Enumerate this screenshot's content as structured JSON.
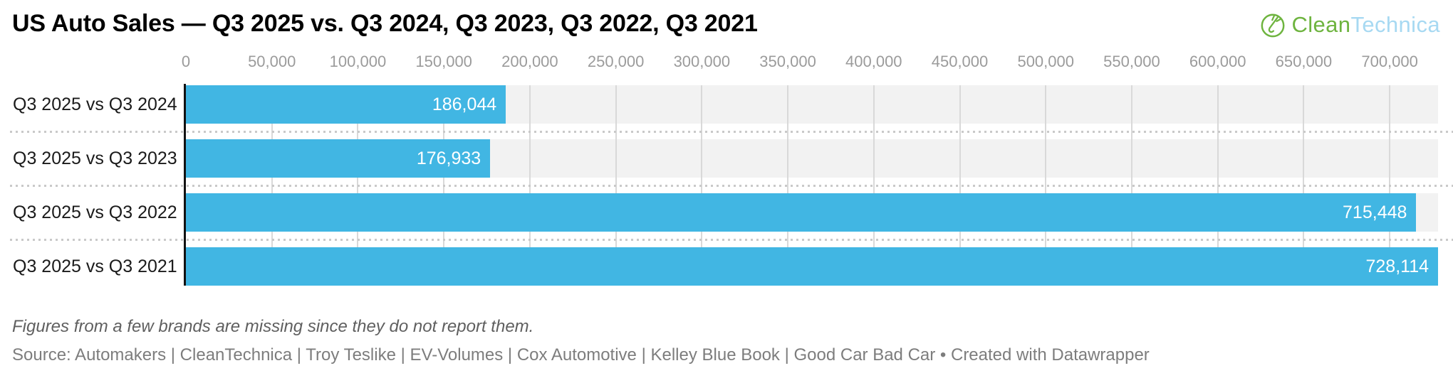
{
  "header": {
    "title": "US Auto Sales — Q3 2025 vs. Q3 2024, Q3 2023, Q3 2022, Q3 2021",
    "logo": {
      "clean": "Clean",
      "technica": "Technica",
      "icon": "cleantechnica-plug-sprout-icon",
      "green": "#6eb43f",
      "light_blue": "#a7d9f2"
    }
  },
  "chart_data": {
    "type": "bar",
    "orientation": "horizontal",
    "title": "US Auto Sales — Q3 2025 vs. Q3 2024, Q3 2023, Q3 2022, Q3 2021",
    "categories": [
      "Q3 2025 vs Q3 2024",
      "Q3 2025 vs Q3 2023",
      "Q3 2025 vs Q3 2022",
      "Q3 2025 vs Q3 2021"
    ],
    "values": [
      186044,
      176933,
      715448,
      728114
    ],
    "value_labels": [
      "186,044",
      "176,933",
      "715,448",
      "728,114"
    ],
    "axis": {
      "min": 0,
      "max": 728114,
      "tick_step": 50000,
      "tick_values": [
        0,
        50000,
        100000,
        150000,
        200000,
        250000,
        300000,
        350000,
        400000,
        450000,
        500000,
        550000,
        600000,
        650000,
        700000
      ],
      "tick_labels": [
        "0",
        "50,000",
        "100,000",
        "150,000",
        "200,000",
        "250,000",
        "300,000",
        "350,000",
        "400,000",
        "450,000",
        "500,000",
        "550,000",
        "600,000",
        "650,000",
        "700,000"
      ]
    },
    "grid": true,
    "legend": false,
    "colors": {
      "bar": "#41b6e3",
      "track": "#f2f2f2",
      "gridline": "#d9d9d9",
      "separator_dots": "#c9c9c9",
      "axis_line": "#121212",
      "tick_text": "#9b9b9b",
      "value_text": "#ffffff"
    }
  },
  "notes": {
    "footnote": "Figures from a few brands are missing since they do not report them.",
    "source": "Source: Automakers | CleanTechnica | Troy Teslike | EV-Volumes | Cox Automotive | Kelley Blue Book | Good Car Bad Car • Created with Datawrapper"
  }
}
